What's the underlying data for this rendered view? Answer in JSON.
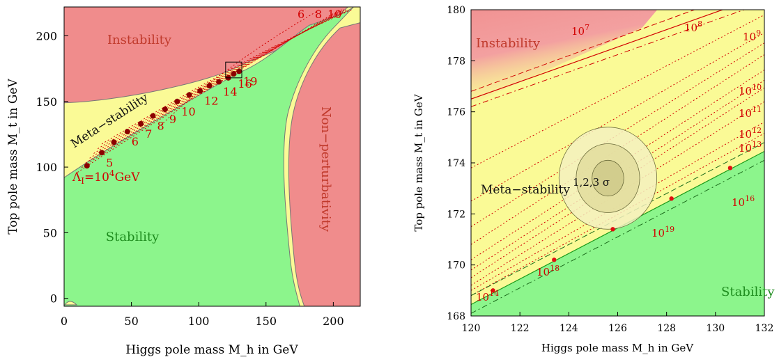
{
  "colors": {
    "instability": "#f08c8c",
    "metastability": "#fafa96",
    "stability": "#8cf58c",
    "nonperturbativity": "#f08c8c",
    "curves": "#d20000",
    "points": "#8b0000"
  },
  "chart_data": [
    {
      "type": "area",
      "title": "",
      "xlabel": "Higgs pole mass M_h in GeV",
      "ylabel": "Top pole mass M_t in GeV",
      "xlim": [
        0,
        220
      ],
      "ylim": [
        -6,
        222
      ],
      "xticks": [
        "0",
        "50",
        "100",
        "150",
        "200"
      ],
      "yticks": [
        "0",
        "50",
        "100",
        "150",
        "200"
      ],
      "regions": [
        {
          "name": "Instability"
        },
        {
          "name": "Meta−stability"
        },
        {
          "name": "Stability"
        },
        {
          "name": "Non−perturbativity"
        }
      ],
      "lambda_label_prefix": "Λ",
      "lambda_label_sub": "I",
      "lambda_label_value": "=10",
      "lambda_label_exp": "4",
      "lambda_label_unit": "GeV",
      "instability_scale_points": [
        {
          "x": 17,
          "y": 101
        },
        {
          "x": 28,
          "y": 111,
          "label": "5"
        },
        {
          "x": 37,
          "y": 119
        },
        {
          "x": 47,
          "y": 127,
          "label": "6"
        },
        {
          "x": 57,
          "y": 133,
          "label": "7"
        },
        {
          "x": 66,
          "y": 139,
          "label": "8"
        },
        {
          "x": 75,
          "y": 144,
          "label": "9"
        },
        {
          "x": 84,
          "y": 150,
          "label": "10"
        },
        {
          "x": 93,
          "y": 155
        },
        {
          "x": 101,
          "y": 158,
          "label": "12"
        },
        {
          "x": 108,
          "y": 162
        },
        {
          "x": 115,
          "y": 165,
          "label": "14"
        },
        {
          "x": 122,
          "y": 168
        },
        {
          "x": 126,
          "y": 171,
          "label": "16"
        },
        {
          "x": 130,
          "y": 173,
          "label": "19"
        }
      ],
      "top_right_labels": [
        "6",
        "8",
        "10"
      ],
      "zoom_box": {
        "x": [
          120,
          132
        ],
        "y": [
          168,
          180
        ]
      }
    },
    {
      "type": "area",
      "title": "",
      "xlabel": "Higgs pole mass M_h in GeV",
      "ylabel": "Top pole mass M_t in GeV",
      "xlim": [
        120,
        132
      ],
      "ylim": [
        168,
        180
      ],
      "xticks": [
        "120",
        "122",
        "124",
        "126",
        "128",
        "130",
        "132"
      ],
      "yticks": [
        "168",
        "170",
        "172",
        "174",
        "176",
        "178",
        "180"
      ],
      "regions": [
        {
          "name": "Instability"
        },
        {
          "name": "Meta−stability"
        },
        {
          "name": "Stability"
        }
      ],
      "contour_label": "1,2,3 σ",
      "central_value": {
        "x": 125.6,
        "y": 173.4
      },
      "scale_labels": [
        {
          "base": "10",
          "exp": "7"
        },
        {
          "base": "10",
          "exp": "8"
        },
        {
          "base": "10",
          "exp": "9"
        },
        {
          "base": "10",
          "exp": "10"
        },
        {
          "base": "10",
          "exp": "11"
        },
        {
          "base": "10",
          "exp": "12"
        },
        {
          "base": "10",
          "exp": "13"
        },
        {
          "base": "10",
          "exp": "16"
        },
        {
          "base": "10",
          "exp": "14"
        },
        {
          "base": "10",
          "exp": "18"
        },
        {
          "base": "10",
          "exp": "19"
        }
      ],
      "boundary_points": [
        {
          "x": 120.9,
          "y": 169.0
        },
        {
          "x": 123.4,
          "y": 170.2
        },
        {
          "x": 125.8,
          "y": 171.4
        },
        {
          "x": 128.2,
          "y": 172.6
        },
        {
          "x": 130.6,
          "y": 173.8
        }
      ]
    }
  ]
}
